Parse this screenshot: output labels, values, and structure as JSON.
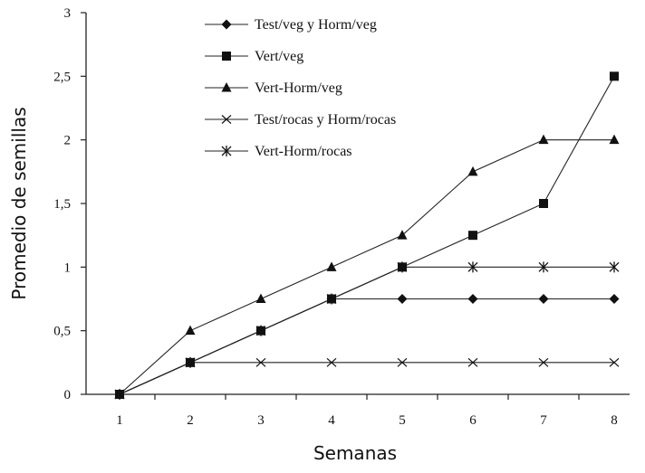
{
  "chart_data": {
    "type": "line",
    "xlabel": "Semanas",
    "ylabel": "Promedio de semillas",
    "ylim": [
      0,
      3
    ],
    "x": [
      1,
      2,
      3,
      4,
      5,
      6,
      7,
      8
    ],
    "x_tick_labels": [
      "1",
      "2",
      "3",
      "4",
      "5",
      "6",
      "7",
      "8"
    ],
    "y_ticks": [
      0,
      0.5,
      1,
      1.5,
      2,
      2.5,
      3
    ],
    "y_tick_labels": [
      "0",
      "0,5",
      "1",
      "1,5",
      "2",
      "2,5",
      "3"
    ],
    "grid": false,
    "legend_position": "top-center",
    "series": [
      {
        "name": "Test/veg y Horm/veg",
        "marker": "diamond",
        "values": [
          0,
          0.25,
          0.5,
          0.75,
          0.75,
          0.75,
          0.75,
          0.75
        ]
      },
      {
        "name": "Vert/veg",
        "marker": "square",
        "values": [
          0,
          0.25,
          0.5,
          0.75,
          1.0,
          1.25,
          1.5,
          2.5
        ]
      },
      {
        "name": "Vert-Horm/veg",
        "marker": "triangle",
        "values": [
          0,
          0.5,
          0.75,
          1.0,
          1.25,
          1.75,
          2.0,
          2.0
        ]
      },
      {
        "name": "Test/rocas y Horm/rocas",
        "marker": "x",
        "values": [
          0,
          0.25,
          0.25,
          0.25,
          0.25,
          0.25,
          0.25,
          0.25
        ]
      },
      {
        "name": "Vert-Horm/rocas",
        "marker": "asterisk",
        "values": [
          0,
          0.25,
          0.5,
          0.75,
          1.0,
          1.0,
          1.0,
          1.0
        ]
      }
    ]
  }
}
